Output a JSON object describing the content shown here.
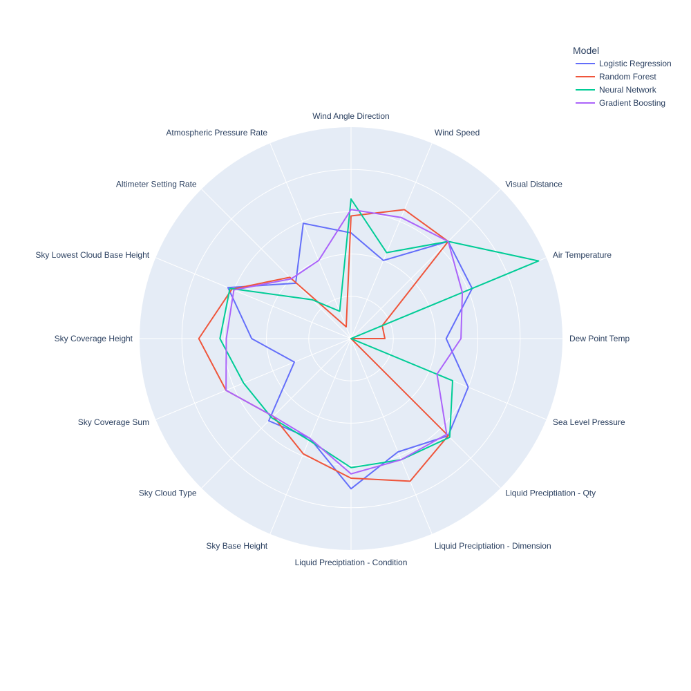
{
  "chart_data": {
    "type": "radar",
    "categories": [
      "Dew Point Temp",
      "Air Temperature",
      "Visual Distance",
      "Wind Speed",
      "Wind Angle Direction",
      "Atmospheric Pressure Rate",
      "Altimeter Setting Rate",
      "Sky Lowest Cloud Base Height",
      "Sky Coverage Height",
      "Sky Coverage Sum",
      "Sky Cloud Type",
      "Sky Base Height",
      "Liquid Preciptiation - Condition",
      "Liquid Preciptiation - Dimension",
      "Liquid Preciptiation - Qty",
      "Sea Level Pressure"
    ],
    "radial_range": [
      0,
      1
    ],
    "grid": true,
    "legend": {
      "title": "Model",
      "position": "top-right"
    },
    "series": [
      {
        "name": "Logistic Regression",
        "color": "#636efa",
        "values": [
          0.45,
          0.62,
          0.65,
          0.4,
          0.5,
          0.59,
          0.37,
          0.63,
          0.47,
          0.29,
          0.55,
          0.51,
          0.71,
          0.58,
          0.65,
          0.6
        ]
      },
      {
        "name": "Random Forest",
        "color": "#ef553b",
        "values": [
          0.16,
          0.16,
          0.65,
          0.66,
          0.58,
          0.06,
          0.41,
          0.61,
          0.72,
          0.64,
          0.52,
          0.59,
          0.66,
          0.73,
          0.65,
          0.0
        ]
      },
      {
        "name": "Neural Network",
        "color": "#00cc96",
        "values": [
          0.0,
          0.96,
          0.65,
          0.44,
          0.66,
          0.14,
          0.26,
          0.62,
          0.62,
          0.55,
          0.53,
          0.52,
          0.61,
          0.62,
          0.66,
          0.52
        ]
      },
      {
        "name": "Gradient Boosting",
        "color": "#ab63fa",
        "values": [
          0.52,
          0.57,
          0.65,
          0.62,
          0.61,
          0.4,
          0.4,
          0.6,
          0.59,
          0.64,
          0.52,
          0.51,
          0.64,
          0.62,
          0.64,
          0.44
        ]
      }
    ]
  }
}
